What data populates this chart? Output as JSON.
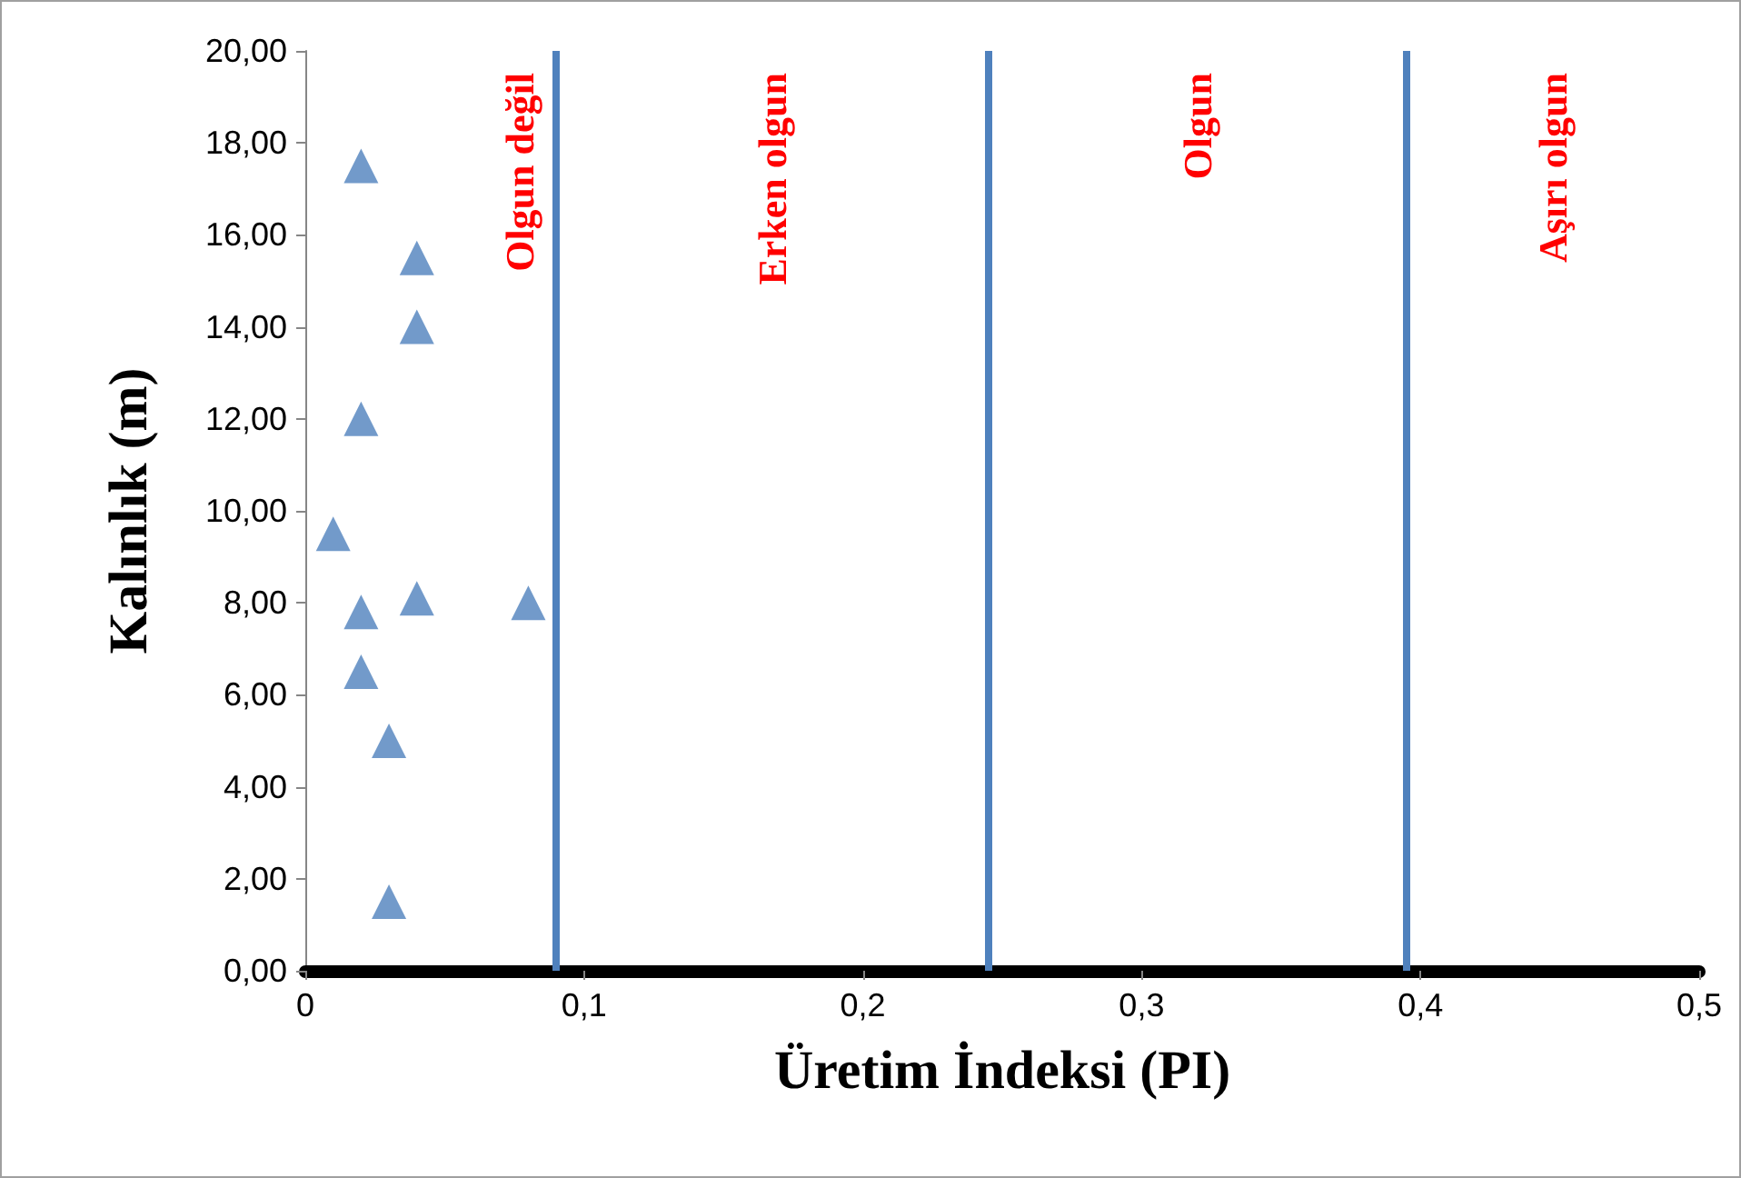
{
  "chart_data": {
    "type": "scatter",
    "xlabel": "Üretim İndeksi (PI)",
    "ylabel": "Kalınlık (m)",
    "series": [
      {
        "color": "#4f81bd",
        "x": [
          0.02,
          0.04,
          0.04,
          0.02,
          0.01,
          0.04,
          0.08,
          0.02,
          0.02,
          0.03,
          0.03
        ],
        "values": [
          17.5,
          15.5,
          14.0,
          12.0,
          9.5,
          8.1,
          8.0,
          7.8,
          6.5,
          5.0,
          1.5
        ]
      }
    ],
    "marker": "triangle",
    "grid": false,
    "xlim": [
      0,
      0.5
    ],
    "ylim": [
      0,
      20
    ],
    "xticks": [
      0,
      {
        "value": 0.1,
        "label": "0,1"
      },
      {
        "value": 0.2,
        "label": "0,2"
      },
      {
        "value": 0.3,
        "label": "0,3"
      },
      {
        "value": 0.4,
        "label": "0,4"
      },
      {
        "value": 0.5,
        "label": "0,5"
      }
    ],
    "yticks": [
      {
        "value": 0,
        "label": "0,00"
      },
      {
        "value": 2,
        "label": "2,00"
      },
      {
        "value": 4,
        "label": "4,00"
      },
      {
        "value": 6,
        "label": "6,00"
      },
      {
        "value": 8,
        "label": "8,00"
      },
      {
        "value": 10,
        "label": "10,00"
      },
      {
        "value": 12,
        "label": "12,00"
      },
      {
        "value": 14,
        "label": "14,00"
      },
      {
        "value": 16,
        "label": "16,00"
      },
      {
        "value": 18,
        "label": "18,00"
      },
      {
        "value": 20,
        "label": "20,00"
      }
    ],
    "ref_lines": [
      {
        "axis": "x",
        "value": 0.09,
        "color": "#4f81bd",
        "line_style": "solid"
      },
      {
        "axis": "x",
        "value": 0.245,
        "color": "#4f81bd",
        "line_style": "solid"
      },
      {
        "axis": "x",
        "value": 0.395,
        "color": "#4f81bd",
        "line_style": "solid"
      }
    ],
    "annotations": [
      "Olgun değil",
      "Erken olgun",
      "Olgun",
      "Aşırı olgun"
    ]
  }
}
